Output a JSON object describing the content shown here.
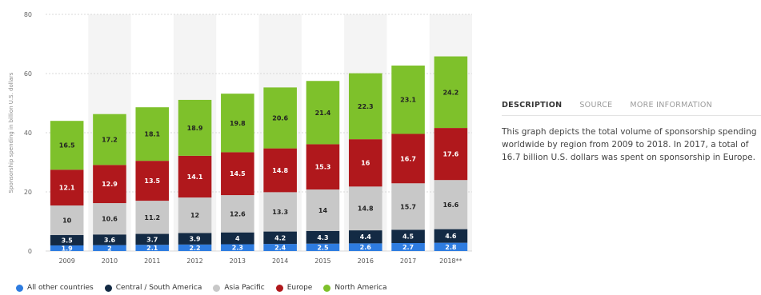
{
  "chart_data": {
    "type": "bar",
    "stacked": true,
    "categories": [
      "2009",
      "2010",
      "2011",
      "2012",
      "2013",
      "2014",
      "2015",
      "2016",
      "2017",
      "2018**"
    ],
    "ylabel": "Sponsorship spending in billion U.S. dollars",
    "ylim": [
      0,
      80
    ],
    "yticks": [
      "0",
      "20",
      "40",
      "60",
      "80"
    ],
    "grid": true,
    "legend_position": "bottom",
    "series": [
      {
        "name": "All other countries",
        "color": "#2e7ce0",
        "values": [
          1.9,
          2,
          2.1,
          2.2,
          2.3,
          2.4,
          2.5,
          2.6,
          2.7,
          2.8
        ],
        "labels": [
          "1.9",
          "2",
          "2.1",
          "2.2",
          "2.3",
          "2.4",
          "2.5",
          "2.6",
          "2.7",
          "2.8"
        ]
      },
      {
        "name": "Central / South America",
        "color": "#132a44",
        "values": [
          3.5,
          3.6,
          3.7,
          3.9,
          4,
          4.2,
          4.3,
          4.4,
          4.5,
          4.6
        ],
        "labels": [
          "3.5",
          "3.6",
          "3.7",
          "3.9",
          "4",
          "4.2",
          "4.3",
          "4.4",
          "4.5",
          "4.6"
        ]
      },
      {
        "name": "Asia Pacific",
        "color": "#c8c8c8",
        "values": [
          10,
          10.6,
          11.2,
          12,
          12.6,
          13.3,
          14,
          14.8,
          15.7,
          16.6
        ],
        "labels": [
          "10",
          "10.6",
          "11.2",
          "12",
          "12.6",
          "13.3",
          "14",
          "14.8",
          "15.7",
          "16.6"
        ]
      },
      {
        "name": "Europe",
        "color": "#b0181c",
        "values": [
          12.1,
          12.9,
          13.5,
          14.1,
          14.5,
          14.8,
          15.3,
          16,
          16.7,
          17.6
        ],
        "labels": [
          "12.1",
          "12.9",
          "13.5",
          "14.1",
          "14.5",
          "14.8",
          "15.3",
          "16",
          "16.7",
          "17.6"
        ]
      },
      {
        "name": "North America",
        "color": "#7ec12b",
        "values": [
          16.5,
          17.2,
          18.1,
          18.9,
          19.8,
          20.6,
          21.4,
          22.3,
          23.1,
          24.2
        ],
        "labels": [
          "16.5",
          "17.2",
          "18.1",
          "18.9",
          "19.8",
          "20.6",
          "21.4",
          "22.3",
          "23.1",
          "24.2"
        ]
      }
    ]
  },
  "tabs": [
    {
      "label": "DESCRIPTION",
      "active": true
    },
    {
      "label": "SOURCE",
      "active": false
    },
    {
      "label": "MORE INFORMATION",
      "active": false
    }
  ],
  "description": "This graph depicts the total volume of sponsorship spending worldwide by region from 2009 to 2018. In 2017, a total of 16.7 billion U.S. dollars was spent on sponsorship in Europe."
}
